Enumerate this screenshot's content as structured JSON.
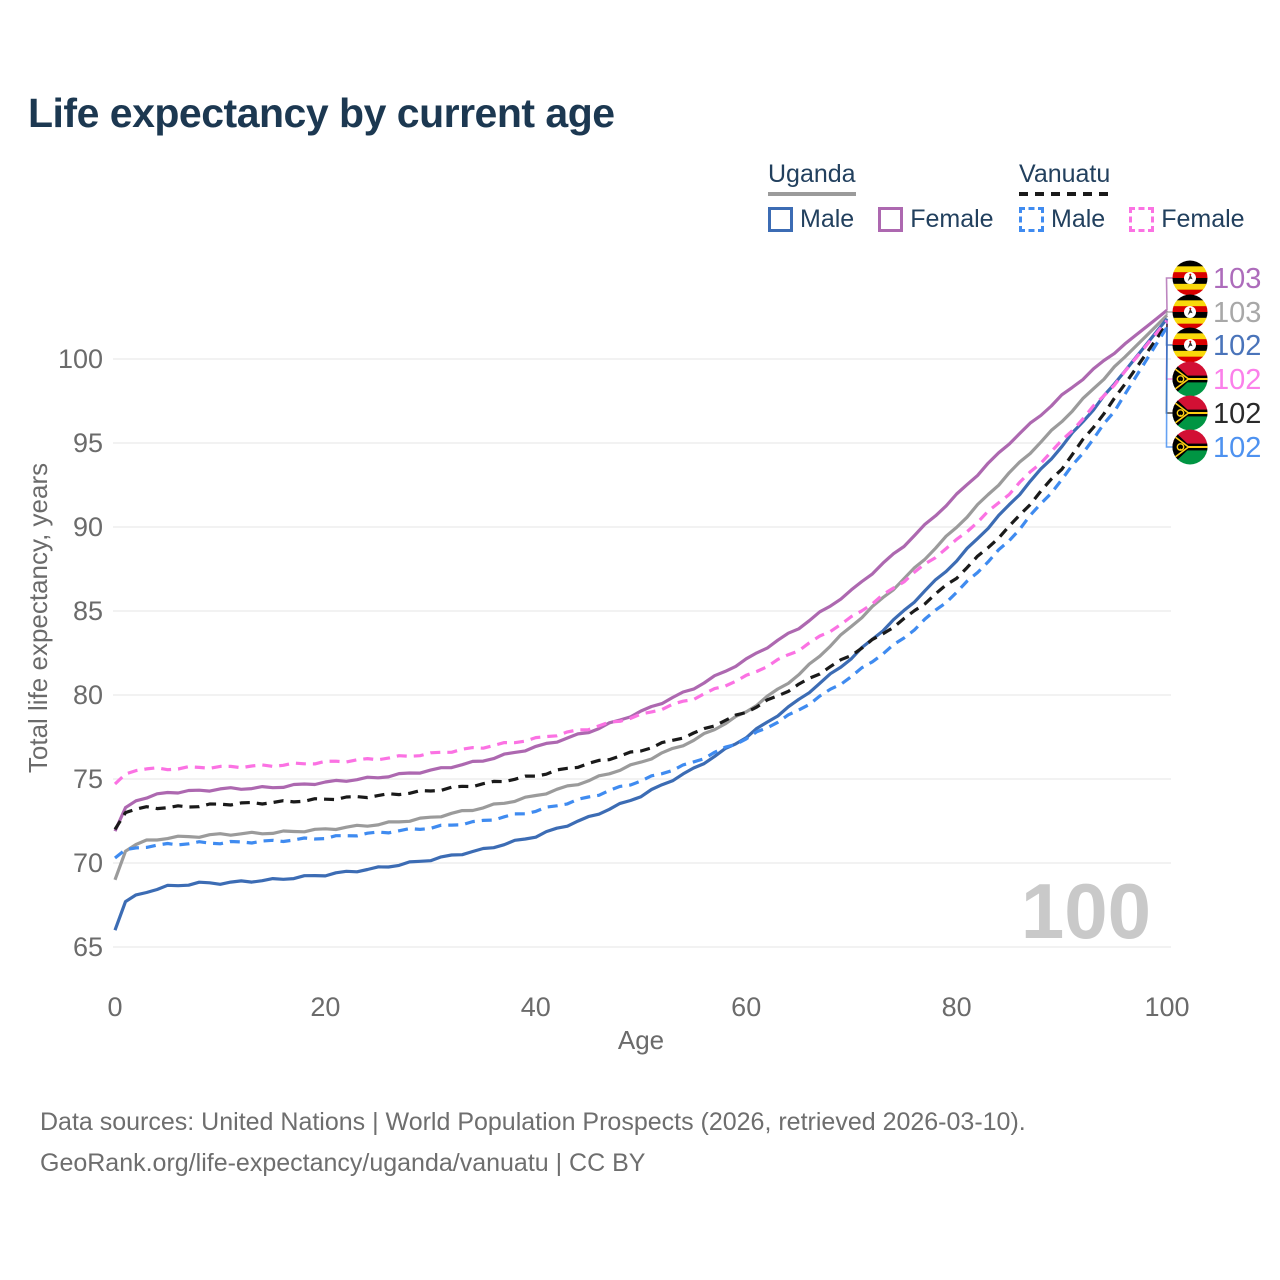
{
  "title": "Life expectancy by current age",
  "legend": {
    "groups": [
      {
        "country": "Uganda",
        "line_style": "solid",
        "line_color": "#9b9b9b",
        "items": [
          {
            "label": "Male",
            "color": "#3c6cb4",
            "dashed": false
          },
          {
            "label": "Female",
            "color": "#ad68b0",
            "dashed": false
          }
        ]
      },
      {
        "country": "Vanuatu",
        "line_style": "dashed",
        "line_color": "#1a1a1a",
        "items": [
          {
            "label": "Male",
            "color": "#3f8bf0",
            "dashed": true
          },
          {
            "label": "Female",
            "color": "#fb72e3",
            "dashed": true
          }
        ]
      }
    ]
  },
  "chart_data": {
    "type": "line",
    "title": "Life expectancy by current age",
    "xlabel": "Age",
    "ylabel": "Total life expectancy, years",
    "xlim": [
      0,
      100
    ],
    "ylim": [
      65,
      100
    ],
    "xticks": [
      0,
      20,
      40,
      60,
      80,
      100
    ],
    "yticks": [
      65,
      70,
      75,
      80,
      85,
      90,
      95,
      100
    ],
    "grid": "horizontal",
    "legend_position": "top-right",
    "watermark": "100",
    "ages": [
      0,
      1,
      2,
      3,
      5,
      8,
      10,
      15,
      20,
      25,
      30,
      35,
      40,
      45,
      50,
      55,
      60,
      65,
      70,
      75,
      80,
      85,
      90,
      95,
      100
    ],
    "series": [
      {
        "name": "Uganda Female",
        "slug": "uganda-female",
        "country": "Uganda",
        "sex": "Female",
        "flag": "uganda",
        "color": "#ad68b0",
        "dashed": false,
        "end_label": "103",
        "label_color": "#ad6cbb",
        "values": [
          71.9,
          73.3,
          73.7,
          73.9,
          74.2,
          74.3,
          74.4,
          74.5,
          74.8,
          75.1,
          75.5,
          76.1,
          76.9,
          77.8,
          79.0,
          80.4,
          82.1,
          84.0,
          86.2,
          88.9,
          91.9,
          95.0,
          97.8,
          100.4,
          102.9
        ]
      },
      {
        "name": "Uganda (all)",
        "slug": "uganda-all",
        "country": "Uganda",
        "sex": "All",
        "flag": "uganda",
        "color": "#9b9b9b",
        "dashed": false,
        "end_label": "103",
        "label_color": "#a8a8a8",
        "values": [
          69.0,
          70.7,
          71.1,
          71.3,
          71.5,
          71.6,
          71.7,
          71.8,
          72.0,
          72.3,
          72.7,
          73.3,
          74.0,
          74.9,
          76.0,
          77.3,
          79.0,
          81.2,
          84.1,
          86.9,
          90.0,
          93.2,
          96.3,
          99.5,
          102.6
        ]
      },
      {
        "name": "Uganda Male",
        "slug": "uganda-male",
        "country": "Uganda",
        "sex": "Male",
        "flag": "uganda",
        "color": "#3c6cb4",
        "dashed": false,
        "end_label": "102",
        "label_color": "#4a74ba",
        "values": [
          66.0,
          67.7,
          68.1,
          68.3,
          68.6,
          68.8,
          68.8,
          69.0,
          69.3,
          69.7,
          70.2,
          70.8,
          71.6,
          72.7,
          74.0,
          75.6,
          77.5,
          79.7,
          82.2,
          85.0,
          88.0,
          91.3,
          94.8,
          98.5,
          102.4
        ]
      },
      {
        "name": "Vanuatu Female",
        "slug": "vanuatu-female",
        "country": "Vanuatu",
        "sex": "Female",
        "flag": "vanuatu",
        "color": "#fb72e3",
        "dashed": true,
        "end_label": "102",
        "label_color": "#fb80ea",
        "values": [
          74.7,
          75.3,
          75.5,
          75.6,
          75.6,
          75.7,
          75.7,
          75.8,
          76.0,
          76.2,
          76.5,
          76.9,
          77.4,
          78.0,
          78.8,
          79.8,
          81.1,
          82.7,
          84.6,
          86.8,
          89.2,
          92.0,
          95.1,
          98.5,
          102.3
        ]
      },
      {
        "name": "Vanuatu (all)",
        "slug": "vanuatu-all",
        "country": "Vanuatu",
        "sex": "All",
        "flag": "vanuatu",
        "color": "#1a1a1a",
        "dashed": true,
        "end_label": "102",
        "label_color": "#2a2a2a",
        "values": [
          72.0,
          73.0,
          73.2,
          73.3,
          73.3,
          73.4,
          73.5,
          73.6,
          73.8,
          74.0,
          74.3,
          74.7,
          75.2,
          75.9,
          76.7,
          77.7,
          79.0,
          80.6,
          82.4,
          84.5,
          87.0,
          90.0,
          93.5,
          97.6,
          102.1
        ]
      },
      {
        "name": "Vanuatu Male",
        "slug": "vanuatu-male",
        "country": "Vanuatu",
        "sex": "Male",
        "flag": "vanuatu",
        "color": "#3f8bf0",
        "dashed": true,
        "end_label": "102",
        "label_color": "#4e92f0",
        "values": [
          70.3,
          70.8,
          70.9,
          71.0,
          71.1,
          71.2,
          71.2,
          71.3,
          71.5,
          71.8,
          72.1,
          72.5,
          73.1,
          73.9,
          74.9,
          76.0,
          77.4,
          79.1,
          81.1,
          83.4,
          86.1,
          89.2,
          92.8,
          96.9,
          101.9
        ]
      }
    ]
  },
  "footer": {
    "line1": "Data sources: United Nations | World Population Prospects (2026, retrieved 2026-03-10).",
    "line2": "GeoRank.org/life-expectancy/uganda/vanuatu | CC BY"
  }
}
